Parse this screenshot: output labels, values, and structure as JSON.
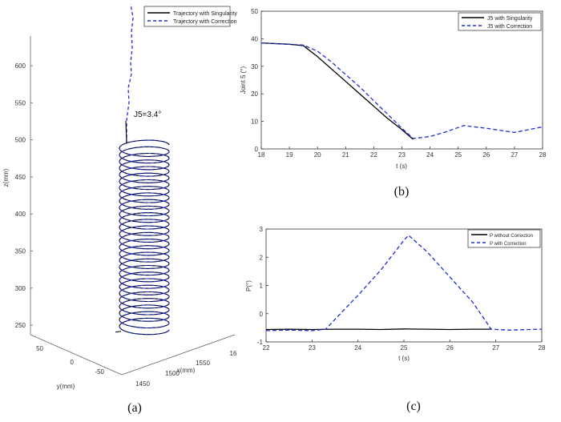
{
  "colors": {
    "solid": "#000000",
    "dashed": "#1f2fd0",
    "axis": "#333333",
    "background": "#ffffff"
  },
  "chart_data": [
    {
      "id": "a",
      "type": "line",
      "subtype": "3d-helix",
      "caption": "(a)",
      "annotation": "J5=3.4°",
      "xlabel": "x(mm)",
      "ylabel": "y(mm)",
      "zlabel": "z(mm)",
      "z_ticks": [
        250,
        300,
        350,
        400,
        450,
        500,
        550,
        600
      ],
      "x_ticks": [
        "1450",
        "1500",
        "1550",
        "16"
      ],
      "y_ticks": [
        "50",
        "0",
        "-50"
      ],
      "zlim": [
        235,
        640
      ],
      "helix": {
        "z_start": 244,
        "z_end": 493,
        "turns": 28,
        "radius_mm": 50
      },
      "legend": {
        "position": "top-right",
        "entries": [
          "Trajectory with Singularity",
          "Trajectory with Correction"
        ]
      },
      "series": [
        {
          "name": "Trajectory with Singularity",
          "style": "solid"
        },
        {
          "name": "Trajectory with Correction",
          "style": "dashed"
        }
      ]
    },
    {
      "id": "b",
      "type": "line",
      "caption": "(b)",
      "xlabel": "t (s)",
      "ylabel": "Joint 5 (°)",
      "xlim": [
        18,
        28
      ],
      "ylim": [
        0,
        50
      ],
      "x_ticks": [
        18,
        19,
        20,
        21,
        22,
        23,
        24,
        25,
        26,
        27,
        28
      ],
      "y_ticks": [
        0,
        10,
        20,
        30,
        40,
        50
      ],
      "legend": {
        "position": "top-right",
        "entries": [
          "J5 with Singularity",
          "J5 with Correction"
        ]
      },
      "series": [
        {
          "name": "J5 with Singularity",
          "style": "solid",
          "x": [
            18,
            19,
            19.5,
            20,
            20.5,
            21,
            21.5,
            22,
            22.5,
            23,
            23.4
          ],
          "y": [
            38.5,
            38,
            37.5,
            33.5,
            29,
            24.5,
            20,
            15.5,
            11,
            7,
            3.5
          ]
        },
        {
          "name": "J5 with Correction",
          "style": "dashed",
          "x": [
            18,
            19,
            19.5,
            20,
            20.5,
            21,
            21.5,
            22,
            22.5,
            23,
            23.4,
            24,
            24.5,
            25.2,
            26,
            27,
            28
          ],
          "y": [
            38.5,
            38,
            37.7,
            35.5,
            31.5,
            27,
            22.5,
            17.5,
            12.5,
            7.5,
            3.8,
            4.5,
            6,
            8.5,
            7.5,
            6,
            8
          ]
        }
      ]
    },
    {
      "id": "c",
      "type": "line",
      "caption": "(c)",
      "xlabel": "t (s)",
      "ylabel": "P(°)",
      "xlim": [
        22,
        28
      ],
      "ylim": [
        -1,
        3
      ],
      "x_ticks": [
        22,
        23,
        24,
        25,
        26,
        27,
        28
      ],
      "y_ticks": [
        -1,
        0,
        1,
        2,
        3
      ],
      "legend": {
        "position": "top-right",
        "entries": [
          "P without Correction",
          "P with Correction"
        ]
      },
      "series": [
        {
          "name": "P without Correction",
          "style": "solid",
          "x": [
            22,
            22.5,
            23,
            23.5,
            24,
            24.5,
            25,
            25.5,
            26,
            26.5,
            26.9
          ],
          "y": [
            -0.56,
            -0.55,
            -0.56,
            -0.55,
            -0.55,
            -0.56,
            -0.54,
            -0.55,
            -0.56,
            -0.55,
            -0.55
          ]
        },
        {
          "name": "P with Correction",
          "style": "dashed",
          "x": [
            22,
            22.5,
            23,
            23.3,
            23.5,
            24,
            24.5,
            25,
            25.1,
            25.5,
            26,
            26.5,
            26.9,
            27.3,
            28
          ],
          "y": [
            -0.6,
            -0.58,
            -0.6,
            -0.55,
            -0.2,
            0.65,
            1.55,
            2.6,
            2.78,
            2.2,
            1.3,
            0.4,
            -0.55,
            -0.58,
            -0.55
          ]
        }
      ]
    }
  ]
}
